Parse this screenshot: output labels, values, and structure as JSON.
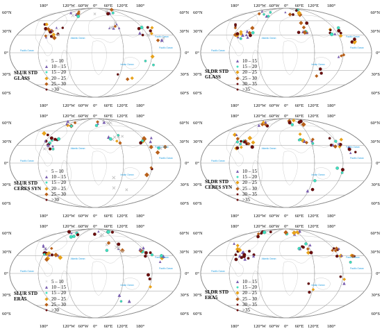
{
  "map_labels": {
    "lon": [
      "180°",
      "120°W",
      "60°W",
      "0°",
      "60°E",
      "120°E",
      "180°"
    ],
    "lat_left": [
      "60°N",
      "30°N",
      "0°",
      "30°S",
      "60°S"
    ],
    "lat_right": [
      "60°N",
      "30°N",
      "0°",
      "30°S",
      "60°S"
    ],
    "oceans": [
      "Pacific Ocean",
      "Atlantic Ocean",
      "Pacific Ocean",
      "Indian Ocean",
      "Pacific Ocean"
    ]
  },
  "colors": {
    "c1": "#bdbdbd",
    "c2": "#7a5fb0",
    "c3": "#3fe0c0",
    "c4": "#e8a21a",
    "c5": "#b8601a",
    "c6": "#6b0b0b",
    "grid": "#9a9a9a",
    "land": "#b8b8b8",
    "ocean_text": "#1e9be0"
  },
  "panels": [
    {
      "id": "p1",
      "title_lines": [
        "SLUR STD",
        "GLASS"
      ],
      "legend": [
        "5 – 10",
        "10 – 15",
        "15 – 20",
        "20 – 25",
        "25 – 30",
        ">30"
      ],
      "legend_colors": [
        "c1",
        "c2",
        "c3",
        "c4",
        "c5",
        "c6"
      ]
    },
    {
      "id": "p2",
      "title_lines": [
        "SLDR STD",
        "GLASS"
      ],
      "legend": [
        "10 – 15",
        "15 – 20",
        "20 – 25",
        "25 – 30",
        "30 – 35",
        ">35"
      ],
      "legend_colors": [
        "c2",
        "c3",
        "c4",
        "c5",
        "c6",
        "c6"
      ]
    },
    {
      "id": "p3",
      "title_lines": [
        "SLUR STD",
        "CERES SYN"
      ],
      "legend": [
        "5 – 10",
        "10 – 15",
        "15 – 20",
        "20 – 25",
        "25 – 30",
        ">30"
      ],
      "legend_colors": [
        "c1",
        "c2",
        "c3",
        "c4",
        "c5",
        "c6"
      ]
    },
    {
      "id": "p4",
      "title_lines": [
        "SLDR STD",
        "CERES SYN"
      ],
      "legend": [
        "10 – 15",
        "15 – 20",
        "20 – 25",
        "25 – 30",
        "30 – 35",
        ">35"
      ],
      "legend_colors": [
        "c2",
        "c3",
        "c4",
        "c5",
        "c6",
        "c6"
      ]
    },
    {
      "id": "p5",
      "title_lines": [
        "SLUR STD",
        "ERA5"
      ],
      "legend": [
        "5 – 10",
        "10 – 15",
        "15 – 20",
        "20 – 25",
        "25 – 30",
        ">30"
      ],
      "legend_colors": [
        "c1",
        "c2",
        "c3",
        "c4",
        "c5",
        "c6"
      ]
    },
    {
      "id": "p6",
      "title_lines": [
        "SLDR STD",
        "ERA5"
      ],
      "legend": [
        "10 – 15",
        "15 – 20",
        "20 – 25",
        "25 – 30",
        "30 – 35",
        ">35"
      ],
      "legend_colors": [
        "c2",
        "c3",
        "c4",
        "c5",
        "c6",
        "c6"
      ]
    }
  ]
}
